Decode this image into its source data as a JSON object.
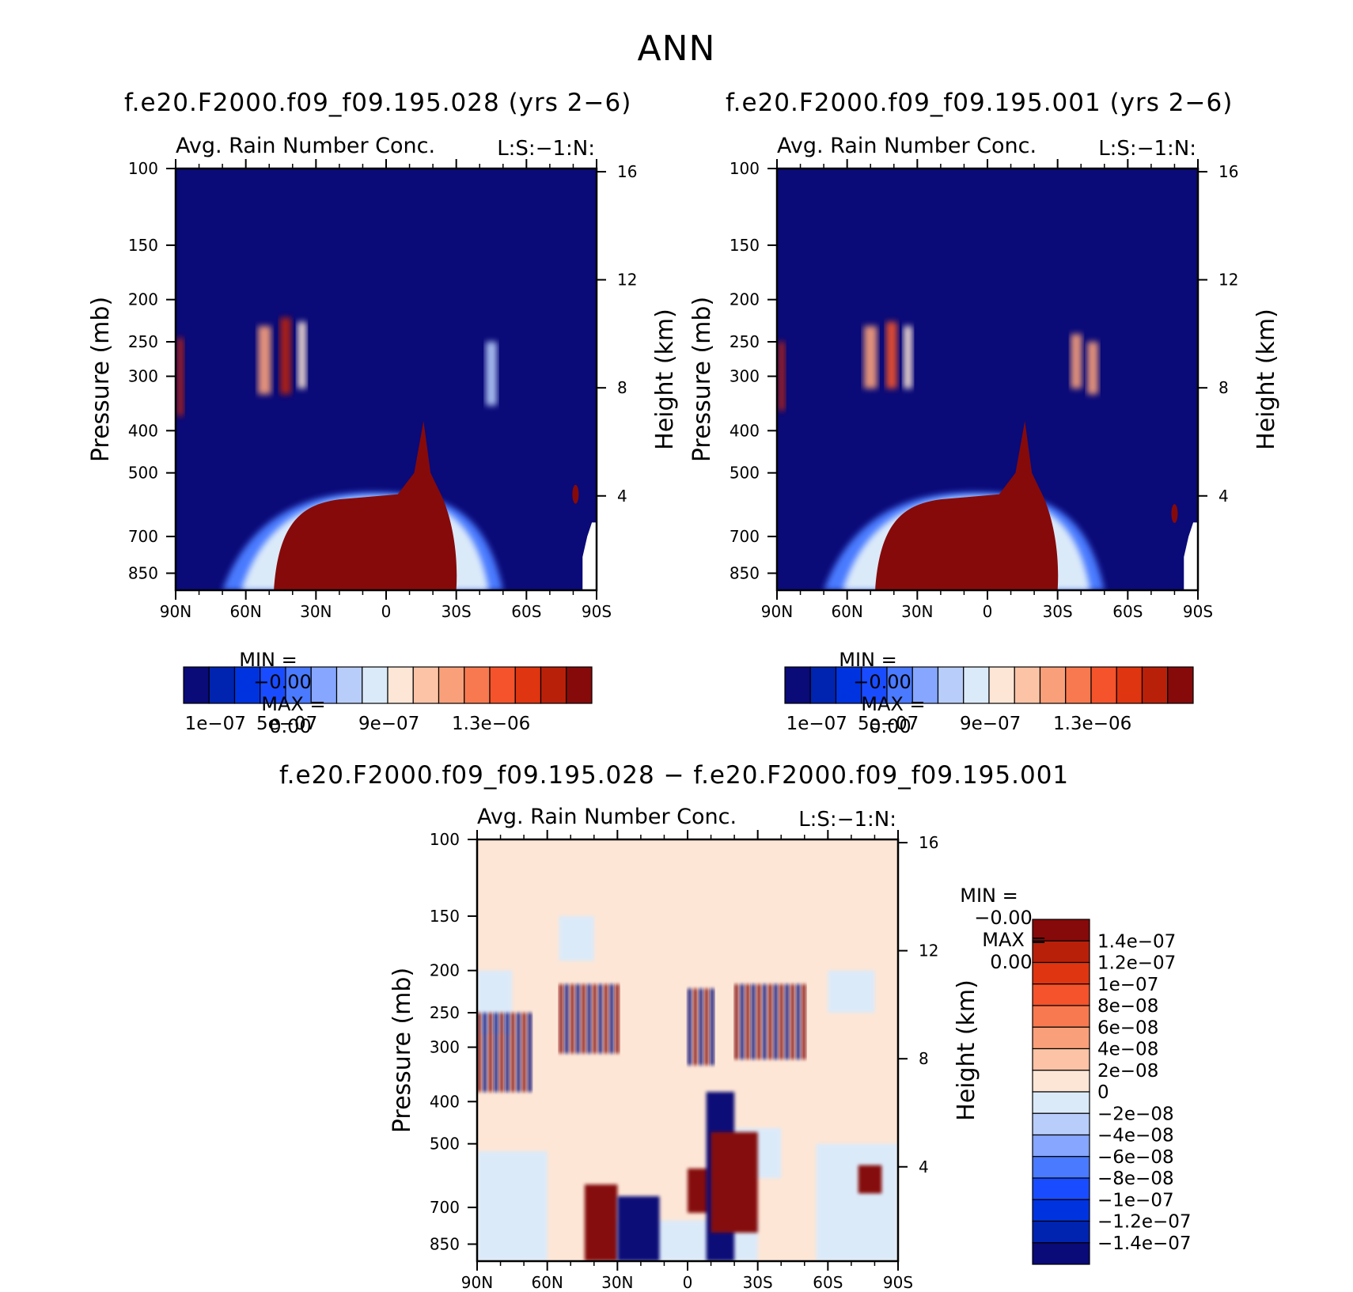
{
  "page": {
    "title": "ANN"
  },
  "panels": [
    {
      "id": "top-left",
      "case_title": "f.e20.F2000.f09_f09.195.028 (yrs 2−6)",
      "variable_label": "Avg. Rain Number Conc.",
      "level_label": "L:S:−1:N:",
      "min_label": "MIN =",
      "min_value": "−0.00",
      "max_label": "MAX =",
      "max_value": "0.00"
    },
    {
      "id": "top-right",
      "case_title": "f.e20.F2000.f09_f09.195.001 (yrs 2−6)",
      "variable_label": "Avg. Rain Number Conc.",
      "level_label": "L:S:−1:N:",
      "min_label": "MIN =",
      "min_value": "−0.00",
      "max_label": "MAX =",
      "max_value": "0.00"
    },
    {
      "id": "bottom-diff",
      "case_title": "f.e20.F2000.f09_f09.195.028 − f.e20.F2000.f09_f09.195.001",
      "variable_label": "Avg. Rain Number Conc.",
      "level_label": "L:S:−1:N:",
      "min_label": "MIN =",
      "min_value": "−0.00",
      "max_label": "MAX =",
      "max_value": "0.00"
    }
  ],
  "chart_data": [
    {
      "type": "heatmap",
      "title": "f.e20.F2000.f09_f09.195.028 (yrs 2−6)",
      "variable": "Avg. Rain Number Conc.",
      "ylabel": "Pressure (mb)",
      "y2label": "Height (km)",
      "x_ticks": [
        "90N",
        "60N",
        "30N",
        "0",
        "30S",
        "60S",
        "90S"
      ],
      "y_ticks": [
        100,
        150,
        200,
        250,
        300,
        400,
        500,
        700,
        850
      ],
      "y2_ticks": [
        4,
        8,
        12,
        16
      ],
      "y_scale": "log",
      "ylim": [
        100,
        1000
      ],
      "colorbar": {
        "labels": [
          "1e−07",
          "5e−07",
          "9e−07",
          "1.3e−06"
        ],
        "colors": [
          "#0a0a78",
          "#0023b0",
          "#0033e0",
          "#1a4cff",
          "#4a7aff",
          "#86a6ff",
          "#b8cdfa",
          "#dbeaf9",
          "#fde6d6",
          "#fcc3a6",
          "#f9a07a",
          "#f8794f",
          "#f4532b",
          "#df3510",
          "#b9200a",
          "#860a0a"
        ]
      }
    },
    {
      "type": "heatmap",
      "title": "f.e20.F2000.f09_f09.195.001 (yrs 2−6)",
      "variable": "Avg. Rain Number Conc.",
      "ylabel": "Pressure (mb)",
      "y2label": "Height (km)",
      "x_ticks": [
        "90N",
        "60N",
        "30N",
        "0",
        "30S",
        "60S",
        "90S"
      ],
      "y_ticks": [
        100,
        150,
        200,
        250,
        300,
        400,
        500,
        700,
        850
      ],
      "y2_ticks": [
        4,
        8,
        12,
        16
      ],
      "y_scale": "log",
      "ylim": [
        100,
        1000
      ],
      "colorbar": {
        "labels": [
          "1e−07",
          "5e−07",
          "9e−07",
          "1.3e−06"
        ],
        "colors": [
          "#0a0a78",
          "#0023b0",
          "#0033e0",
          "#1a4cff",
          "#4a7aff",
          "#86a6ff",
          "#b8cdfa",
          "#dbeaf9",
          "#fde6d6",
          "#fcc3a6",
          "#f9a07a",
          "#f8794f",
          "#f4532b",
          "#df3510",
          "#b9200a",
          "#860a0a"
        ]
      }
    },
    {
      "type": "heatmap",
      "title": "f.e20.F2000.f09_f09.195.028 − f.e20.F2000.f09_f09.195.001",
      "variable": "Avg. Rain Number Conc.",
      "ylabel": "Pressure (mb)",
      "y2label": "Height (km)",
      "x_ticks": [
        "90N",
        "60N",
        "30N",
        "0",
        "30S",
        "60S",
        "90S"
      ],
      "y_ticks": [
        100,
        150,
        200,
        250,
        300,
        400,
        500,
        700,
        850
      ],
      "y2_ticks": [
        4,
        8,
        12,
        16
      ],
      "y_scale": "log",
      "ylim": [
        100,
        1000
      ],
      "colorbar": {
        "orientation": "vertical",
        "labels": [
          "1.4e−07",
          "1.2e−07",
          "1e−07",
          "8e−08",
          "6e−08",
          "4e−08",
          "2e−08",
          "0",
          "−2e−08",
          "−4e−08",
          "−6e−08",
          "−8e−08",
          "−1e−07",
          "−1.2e−07",
          "−1.4e−07"
        ],
        "colors": [
          "#860a0a",
          "#b9200a",
          "#df3510",
          "#f4532b",
          "#f8794f",
          "#f9a07a",
          "#fcc3a6",
          "#fde6d6",
          "#dbeaf9",
          "#b8cdfa",
          "#86a6ff",
          "#4a7aff",
          "#1a4cff",
          "#0033e0",
          "#0023b0",
          "#0a0a78"
        ]
      }
    }
  ]
}
